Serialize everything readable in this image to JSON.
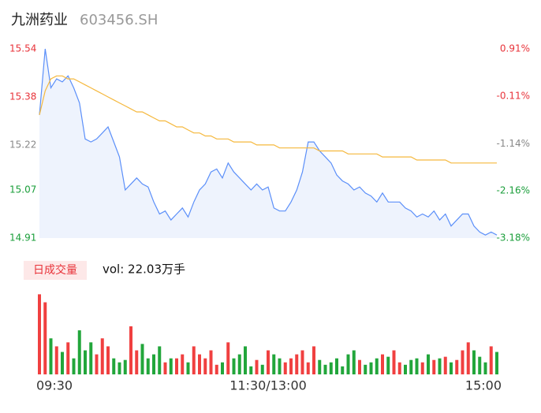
{
  "chart_data": [
    {
      "type": "line",
      "title": "九洲药业",
      "subtitle": "603456.SH",
      "x": [
        0,
        3,
        6,
        9,
        12,
        15,
        18,
        21,
        24,
        27,
        30,
        33,
        36,
        39,
        42,
        45,
        48,
        51,
        54,
        57,
        60,
        63,
        66,
        69,
        72,
        75,
        78,
        81,
        84,
        87,
        90,
        93,
        96,
        99,
        102,
        105,
        108,
        111,
        114,
        117,
        120,
        123,
        126,
        129,
        132,
        135,
        138,
        141,
        144,
        147,
        150,
        153,
        156,
        159,
        162,
        165,
        168,
        171,
        174,
        177,
        180,
        183,
        186,
        189,
        192,
        195,
        198,
        201,
        204,
        207,
        210,
        213,
        216,
        219,
        222,
        225,
        228,
        231,
        234,
        237,
        240
      ],
      "xlim": [
        0,
        240
      ],
      "ylim": [
        14.91,
        15.54
      ],
      "yticks": [
        14.91,
        15.07,
        15.22,
        15.38,
        15.54
      ],
      "ytick_colors": [
        "#1a9e3a",
        "#1a9e3a",
        "#888888",
        "#e8333a",
        "#e8333a"
      ],
      "y2lim": [
        -3.18,
        0.91
      ],
      "y2ticks": [
        {
          "value": -3.18,
          "label": "-3.18%"
        },
        {
          "value": -2.16,
          "label": "-2.16%"
        },
        {
          "value": -1.14,
          "label": "-1.14%"
        },
        {
          "value": -0.11,
          "label": "-0.11%"
        },
        {
          "value": 0.91,
          "label": "0.91%"
        }
      ],
      "series": [
        {
          "color": "#5b8ff9",
          "fill": "#eef3fd",
          "values": [
            15.32,
            15.54,
            15.41,
            15.44,
            15.43,
            15.45,
            15.41,
            15.36,
            15.24,
            15.23,
            15.24,
            15.26,
            15.28,
            15.23,
            15.18,
            15.07,
            15.09,
            15.11,
            15.09,
            15.08,
            15.03,
            14.99,
            15.0,
            14.97,
            14.99,
            15.01,
            14.98,
            15.03,
            15.07,
            15.09,
            15.13,
            15.14,
            15.11,
            15.16,
            15.13,
            15.11,
            15.09,
            15.07,
            15.09,
            15.07,
            15.08,
            15.01,
            15.0,
            15.0,
            15.03,
            15.07,
            15.13,
            15.23,
            15.23,
            15.2,
            15.18,
            15.16,
            15.12,
            15.1,
            15.09,
            15.07,
            15.08,
            15.06,
            15.05,
            15.03,
            15.06,
            15.03,
            15.03,
            15.03,
            15.01,
            15.0,
            14.98,
            14.99,
            14.98,
            15.0,
            14.97,
            14.99,
            14.95,
            14.97,
            14.99,
            14.99,
            14.95,
            14.93,
            14.92,
            14.93,
            14.92
          ]
        },
        {
          "color": "#f5b83d",
          "values": [
            15.32,
            15.4,
            15.44,
            15.45,
            15.45,
            15.44,
            15.44,
            15.43,
            15.42,
            15.41,
            15.4,
            15.39,
            15.38,
            15.37,
            15.36,
            15.35,
            15.34,
            15.33,
            15.33,
            15.32,
            15.31,
            15.3,
            15.3,
            15.29,
            15.28,
            15.28,
            15.27,
            15.26,
            15.26,
            15.25,
            15.25,
            15.24,
            15.24,
            15.24,
            15.23,
            15.23,
            15.23,
            15.23,
            15.22,
            15.22,
            15.22,
            15.22,
            15.21,
            15.21,
            15.21,
            15.21,
            15.21,
            15.21,
            15.21,
            15.2,
            15.2,
            15.2,
            15.2,
            15.2,
            15.19,
            15.19,
            15.19,
            15.19,
            15.19,
            15.19,
            15.18,
            15.18,
            15.18,
            15.18,
            15.18,
            15.18,
            15.17,
            15.17,
            15.17,
            15.17,
            15.17,
            15.17,
            15.16,
            15.16,
            15.16,
            15.16,
            15.16,
            15.16,
            15.16,
            15.16,
            15.16
          ]
        }
      ]
    },
    {
      "type": "bar",
      "legend": "日成交量",
      "annotation": "vol: 22.03万手",
      "up_color": "#f04040",
      "down_color": "#22a63b",
      "x": [
        0,
        3,
        6,
        9,
        12,
        15,
        18,
        21,
        24,
        27,
        30,
        33,
        36,
        39,
        42,
        45,
        48,
        51,
        54,
        57,
        60,
        63,
        66,
        69,
        72,
        75,
        78,
        81,
        84,
        87,
        90,
        93,
        96,
        99,
        102,
        105,
        108,
        111,
        114,
        117,
        120,
        123,
        126,
        129,
        132,
        135,
        138,
        141,
        144,
        147,
        150,
        153,
        156,
        159,
        162,
        165,
        168,
        171,
        174,
        177,
        180,
        183,
        186,
        189,
        192,
        195,
        198,
        201,
        204,
        207,
        210,
        213,
        216,
        219,
        222,
        225,
        228,
        231,
        234,
        237,
        240
      ],
      "xlim": [
        0,
        240
      ],
      "xticks": [
        {
          "value": 0,
          "label": "09:30"
        },
        {
          "value": 120,
          "label": "11:30/13:00"
        },
        {
          "value": 240,
          "label": "15:00"
        }
      ],
      "ylim": [
        0,
        3100
      ],
      "values": [
        3000,
        2700,
        1350,
        1050,
        840,
        1200,
        600,
        1650,
        900,
        1200,
        750,
        1350,
        1050,
        600,
        450,
        540,
        1800,
        900,
        1140,
        600,
        750,
        1050,
        450,
        600,
        600,
        750,
        450,
        1050,
        750,
        600,
        900,
        360,
        450,
        1200,
        600,
        750,
        1050,
        300,
        540,
        360,
        900,
        750,
        600,
        450,
        600,
        750,
        900,
        450,
        1050,
        540,
        360,
        450,
        600,
        300,
        750,
        900,
        540,
        360,
        450,
        600,
        750,
        660,
        900,
        450,
        360,
        540,
        600,
        450,
        750,
        540,
        600,
        660,
        450,
        540,
        900,
        1200,
        900,
        660,
        450,
        1050,
        840
      ]
    }
  ]
}
